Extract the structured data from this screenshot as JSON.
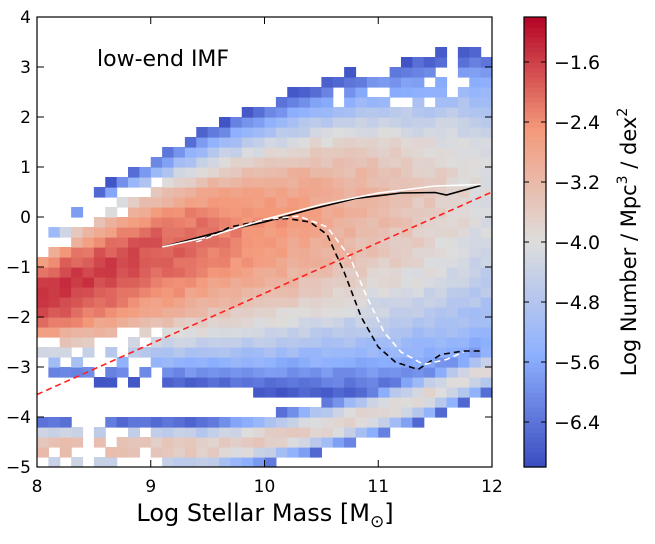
{
  "chart_data": {
    "type": "heatmap",
    "annotation": "low-end IMF",
    "xlabel": "Log Stellar Mass [M",
    "xlabel_sub": "⊙",
    "xlabel_close": "]",
    "xlim": [
      8,
      12
    ],
    "ylim": [
      -5,
      4
    ],
    "x_ticks": [
      8,
      9,
      10,
      11,
      12
    ],
    "y_ticks": [
      -5,
      -4,
      -3,
      -2,
      -1,
      0,
      1,
      2,
      3,
      4
    ],
    "x_tick_labels": [
      "8",
      "9",
      "10",
      "11",
      "12"
    ],
    "y_tick_labels": [
      "−5",
      "−4",
      "−3",
      "−2",
      "−1",
      "0",
      "1",
      "2",
      "3",
      "4"
    ],
    "colorbar": {
      "label_part1": "Log Number / Mpc",
      "label_sup1": "3",
      "label_part2": "  / dex",
      "label_sup2": "2",
      "range": [
        -7.0,
        -1.0
      ],
      "ticks": [
        -1.6,
        -2.4,
        -3.2,
        -4.0,
        -4.8,
        -5.6,
        -6.4
      ],
      "tick_labels": [
        "−1.6",
        "−2.4",
        "−3.2",
        "−4.0",
        "−4.8",
        "−5.6",
        "−6.4"
      ],
      "colormap": "coolwarm"
    },
    "density_model": {
      "bins_x": 40,
      "bins_y": 45,
      "main_ridge": [
        [
          8.0,
          -1.6
        ],
        [
          8.5,
          -1.15
        ],
        [
          9.0,
          -0.7
        ],
        [
          9.5,
          -0.35
        ],
        [
          10.0,
          -0.05
        ],
        [
          10.5,
          0.2
        ],
        [
          11.0,
          0.4
        ],
        [
          11.5,
          0.55
        ],
        [
          12.0,
          0.7
        ]
      ],
      "lower_sequence": [
        [
          8.8,
          -4.6
        ],
        [
          9.5,
          -4.6
        ],
        [
          10.0,
          -4.45
        ],
        [
          10.5,
          -4.2
        ],
        [
          11.0,
          -3.9
        ],
        [
          11.5,
          -3.5
        ],
        [
          12.0,
          -3.0
        ]
      ]
    },
    "series": [
      {
        "style": "solid",
        "color": "#000000",
        "x": [
          9.1,
          9.3,
          9.6,
          10.0,
          10.4,
          10.8,
          11.2,
          11.5,
          11.6,
          11.9
        ],
        "y": [
          -0.6,
          -0.48,
          -0.3,
          -0.1,
          0.15,
          0.37,
          0.48,
          0.49,
          0.44,
          0.63
        ]
      },
      {
        "style": "solid",
        "color": "#ffffff",
        "x": [
          9.1,
          9.5,
          10.0,
          10.5,
          11.0,
          11.5,
          11.9
        ],
        "y": [
          -0.6,
          -0.4,
          -0.05,
          0.25,
          0.48,
          0.62,
          0.65
        ]
      },
      {
        "style": "dashed",
        "color": "#000000",
        "x": [
          9.4,
          9.7,
          10.0,
          10.2,
          10.4,
          10.55,
          10.7,
          10.85,
          11.0,
          11.15,
          11.35,
          11.55,
          11.75,
          11.9
        ],
        "y": [
          -0.5,
          -0.2,
          -0.06,
          -0.03,
          -0.1,
          -0.35,
          -1.1,
          -2.0,
          -2.6,
          -2.9,
          -3.05,
          -2.75,
          -2.68,
          -2.68
        ]
      },
      {
        "style": "dashed",
        "color": "#ffffff",
        "x": [
          9.4,
          9.7,
          10.0,
          10.3,
          10.55,
          10.75,
          10.9,
          11.05,
          11.2,
          11.4,
          11.6,
          11.75
        ],
        "y": [
          -0.5,
          -0.25,
          -0.05,
          0.02,
          -0.2,
          -0.8,
          -1.6,
          -2.3,
          -2.7,
          -2.95,
          -2.85,
          -2.7
        ]
      },
      {
        "style": "dashed",
        "color": "#ff2020",
        "x": [
          8.0,
          12.0
        ],
        "y": [
          -3.55,
          0.5
        ]
      }
    ]
  }
}
